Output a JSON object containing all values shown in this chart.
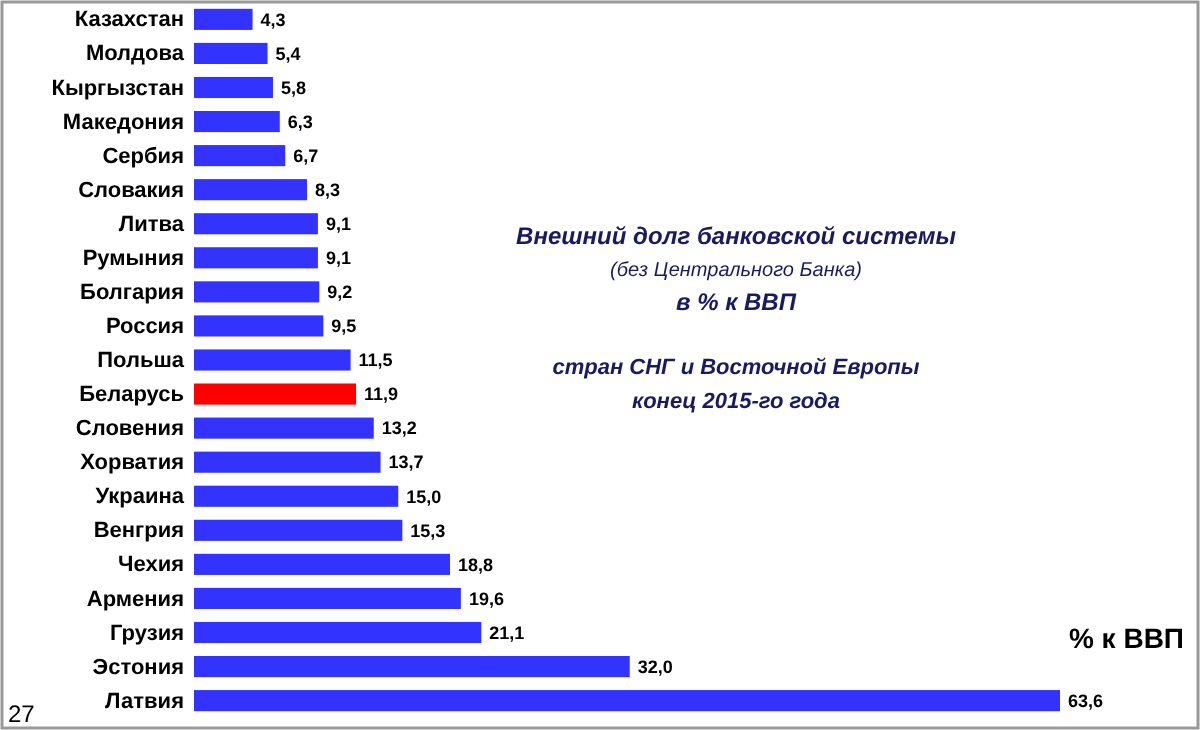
{
  "chart_data": {
    "type": "bar",
    "orientation": "horizontal",
    "title": "Внешний долг банковской системы",
    "subtitle": "(без Центрального Банка)",
    "annotations": [
      "в % к ВВП",
      "стран СНГ и Восточной Европы",
      "конец 2015-го года",
      "27"
    ],
    "xlabel": "% к ВВП",
    "categories": [
      "Казахстан",
      "Молдова",
      "Кыргызстан",
      "Македония",
      "Сербия",
      "Словакия",
      "Литва",
      "Румыния",
      "Болгария",
      "Россия",
      "Польша",
      "Беларусь",
      "Словения",
      "Хорватия",
      "Украина",
      "Венгрия",
      "Чехия",
      "Армения",
      "Грузия",
      "Эстония",
      "Латвия"
    ],
    "values": [
      4.3,
      5.4,
      5.8,
      6.3,
      6.7,
      8.3,
      9.1,
      9.1,
      9.2,
      9.5,
      11.5,
      11.9,
      13.2,
      13.7,
      15.0,
      15.3,
      18.8,
      19.6,
      21.1,
      32.0,
      63.6
    ],
    "colors": [
      "#3333ff",
      "#3333ff",
      "#3333ff",
      "#3333ff",
      "#3333ff",
      "#3333ff",
      "#3333ff",
      "#3333ff",
      "#3333ff",
      "#3333ff",
      "#3333ff",
      "#ff0000",
      "#3333ff",
      "#3333ff",
      "#3333ff",
      "#3333ff",
      "#3333ff",
      "#3333ff",
      "#3333ff",
      "#3333ff",
      "#3333ff"
    ],
    "value_labels": [
      "4,3",
      "5,4",
      "5,8",
      "6,3",
      "6,7",
      "8,3",
      "9,1",
      "9,1",
      "9,2",
      "9,5",
      "11,5",
      "11,9",
      "13,2",
      "13,7",
      "15,0",
      "15,3",
      "18,8",
      "19,6",
      "21,1",
      "32,0",
      "63,6"
    ],
    "tick_labels": "y",
    "grid": false
  }
}
